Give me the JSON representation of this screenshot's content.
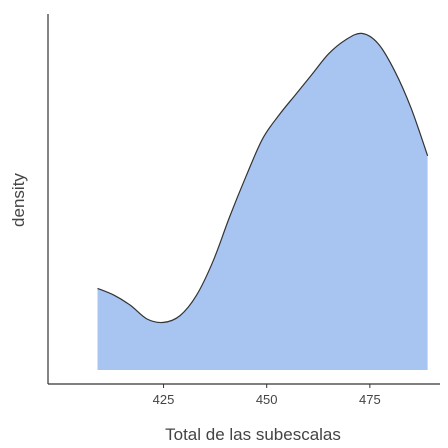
{
  "chart_data": {
    "type": "area",
    "title": "",
    "xlabel": "Total de las subescalas",
    "ylabel": "density",
    "xlim": [
      397,
      492
    ],
    "ylim": [
      0,
      1
    ],
    "x_ticks": [
      425,
      450,
      475
    ],
    "y_ticks": [],
    "grid": false,
    "legend": "none",
    "colors": {
      "fill": "#a8c5f2",
      "line": "#333333",
      "axis": "#333333",
      "text": "#444444"
    },
    "series": [
      {
        "x": [
          409,
          413,
          417,
          421,
          425,
          429,
          433,
          437,
          441,
          445,
          449,
          453,
          457,
          461,
          465,
          469,
          473,
          477,
          481,
          485,
          489
        ],
        "values": [
          0.24,
          0.22,
          0.19,
          0.15,
          0.14,
          0.16,
          0.22,
          0.32,
          0.45,
          0.57,
          0.68,
          0.75,
          0.81,
          0.87,
          0.93,
          0.97,
          0.99,
          0.96,
          0.88,
          0.77,
          0.63
        ]
      }
    ]
  }
}
